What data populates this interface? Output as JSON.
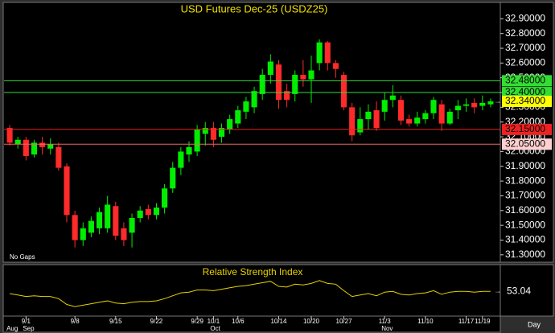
{
  "chart_data": {
    "type": "candlestick",
    "title": "USD Futures Dec-25 (USDZ25)",
    "note": "No Gaps",
    "period": "Day",
    "up_color": "#00ee00",
    "down_color": "#ff2a2a",
    "title_color": "#f0e000",
    "categories": [
      null,
      null,
      "9/1",
      null,
      null,
      null,
      null,
      null,
      "9/8",
      null,
      null,
      null,
      null,
      "9/15",
      null,
      null,
      null,
      null,
      "9/22",
      null,
      null,
      null,
      null,
      "9/29",
      null,
      "10/1",
      null,
      null,
      "10/6",
      null,
      null,
      null,
      null,
      "10/14",
      null,
      null,
      null,
      "10/20",
      null,
      null,
      null,
      "10/27",
      null,
      null,
      null,
      null,
      "11/3",
      null,
      null,
      null,
      null,
      "11/10",
      null,
      null,
      null,
      null,
      "11/17",
      null,
      "11/19",
      null
    ],
    "months": [
      "Aug",
      null,
      "Sep",
      null,
      null,
      null,
      null,
      null,
      null,
      null,
      null,
      null,
      null,
      null,
      null,
      null,
      null,
      null,
      null,
      null,
      null,
      null,
      null,
      null,
      null,
      "Oct",
      null,
      null,
      null,
      null,
      null,
      null,
      null,
      null,
      null,
      null,
      null,
      null,
      null,
      null,
      null,
      null,
      null,
      null,
      null,
      null,
      "Nov",
      null,
      null,
      null,
      null,
      null,
      null,
      null,
      null,
      null,
      null,
      null,
      null,
      null
    ],
    "open": [
      32.16,
      32.05,
      32.08,
      31.98,
      32.06,
      32.02,
      32.03,
      31.9,
      31.57,
      31.4,
      31.45,
      31.48,
      31.48,
      31.63,
      31.48,
      31.45,
      31.55,
      31.61,
      31.57,
      31.62,
      31.75,
      31.89,
      31.98,
      32.0,
      32.12,
      32.16,
      32.1,
      32.15,
      32.19,
      32.27,
      32.3,
      32.39,
      32.52,
      32.59,
      32.41,
      32.39,
      32.52,
      32.49,
      32.6,
      32.74,
      32.6,
      32.52,
      32.3,
      32.13,
      32.22,
      32.28,
      32.27,
      32.35,
      32.35,
      32.22,
      32.19,
      32.22,
      32.26,
      32.32,
      32.19,
      32.28,
      32.31,
      32.33,
      32.31,
      32.32
    ],
    "high": [
      32.18,
      32.1,
      32.1,
      32.08,
      32.1,
      32.09,
      32.06,
      31.92,
      31.6,
      31.52,
      31.56,
      31.62,
      31.7,
      31.66,
      31.52,
      31.58,
      31.63,
      31.64,
      31.65,
      31.78,
      31.93,
      32.03,
      32.07,
      32.18,
      32.2,
      32.2,
      32.19,
      32.25,
      32.31,
      32.37,
      32.44,
      32.56,
      32.66,
      32.62,
      32.46,
      32.55,
      32.62,
      32.65,
      32.76,
      32.75,
      32.62,
      32.54,
      32.33,
      32.3,
      32.32,
      32.34,
      32.4,
      32.45,
      32.38,
      32.25,
      32.27,
      32.28,
      32.37,
      32.35,
      32.29,
      32.35,
      32.36,
      32.36,
      32.38,
      32.36
    ],
    "low": [
      32.04,
      32.02,
      31.94,
      31.96,
      31.98,
      31.98,
      31.87,
      31.52,
      31.35,
      31.36,
      31.42,
      31.44,
      31.45,
      31.4,
      31.36,
      31.35,
      31.52,
      31.54,
      31.54,
      31.58,
      31.72,
      31.84,
      31.93,
      31.97,
      32.04,
      32.03,
      32.06,
      32.12,
      32.16,
      32.22,
      32.26,
      32.35,
      32.46,
      32.29,
      32.3,
      32.34,
      32.44,
      32.33,
      32.55,
      32.55,
      32.5,
      32.28,
      32.07,
      32.11,
      32.15,
      32.14,
      32.21,
      32.3,
      32.18,
      32.17,
      32.17,
      32.19,
      32.22,
      32.14,
      32.18,
      32.22,
      32.27,
      32.26,
      32.28,
      32.3
    ],
    "close": [
      32.06,
      32.08,
      31.97,
      32.06,
      32.03,
      32.05,
      31.89,
      31.57,
      31.4,
      31.48,
      31.53,
      31.59,
      31.64,
      31.43,
      31.4,
      31.55,
      31.6,
      31.57,
      31.62,
      31.75,
      31.89,
      32.0,
      32.03,
      32.15,
      32.16,
      32.08,
      32.16,
      32.22,
      32.28,
      32.34,
      32.41,
      32.52,
      32.61,
      32.35,
      32.35,
      32.52,
      32.49,
      32.55,
      32.74,
      32.6,
      32.56,
      32.3,
      32.11,
      32.22,
      32.27,
      32.16,
      32.35,
      32.38,
      32.21,
      32.19,
      32.23,
      32.26,
      32.35,
      32.19,
      32.27,
      32.31,
      32.32,
      32.3,
      32.33,
      32.34
    ],
    "ylim": [
      31.25,
      33.0
    ],
    "yticks": [
      {
        "value": 31.3,
        "label": "31.30000"
      },
      {
        "value": 31.4,
        "label": "31.40000"
      },
      {
        "value": 31.5,
        "label": "31.50000"
      },
      {
        "value": 31.6,
        "label": "31.60000"
      },
      {
        "value": 31.7,
        "label": "31.70000"
      },
      {
        "value": 31.8,
        "label": "31.80000"
      },
      {
        "value": 31.9,
        "label": "31.90000"
      },
      {
        "value": 32.0,
        "label": "32.00000"
      },
      {
        "value": 32.1,
        "label": "32.10000"
      },
      {
        "value": 32.2,
        "label": "32.20000"
      },
      {
        "value": 32.3,
        "label": "32.30000"
      },
      {
        "value": 32.4,
        "label": "32.40000"
      },
      {
        "value": 32.5,
        "label": "32.50000"
      },
      {
        "value": 32.6,
        "label": "32.60000"
      },
      {
        "value": 32.7,
        "label": "32.70000"
      },
      {
        "value": 32.8,
        "label": "32.80000"
      },
      {
        "value": 32.9,
        "label": "32.90000"
      }
    ],
    "levels": [
      {
        "value": 32.48,
        "label": "32.48000",
        "color": "#33dd33",
        "label_bg": "#33dd33"
      },
      {
        "value": 32.4,
        "label": "32.40000",
        "color": "#33dd33",
        "label_bg": "#33dd33"
      },
      {
        "value": 32.15,
        "label": "32.15000",
        "color": "#ee2222",
        "label_bg": "#ee2222"
      },
      {
        "value": 32.05,
        "label": "32.05000",
        "color": "#ee6666",
        "label_bg": "#ffd0d0"
      }
    ],
    "last": {
      "value": 32.34,
      "label": "32.34000",
      "label_bg": "#ffff00"
    },
    "rsi": {
      "title": "Relative Strength Index",
      "color": "#e6d200",
      "ylim": [
        20,
        80
      ],
      "values": [
        50,
        48,
        46,
        47,
        46,
        46,
        43,
        35,
        32,
        34,
        36,
        38,
        40,
        37,
        36,
        38,
        39,
        39,
        40,
        43,
        47,
        51,
        52,
        55,
        55,
        54,
        56,
        58,
        60,
        61,
        63,
        65,
        67,
        60,
        59,
        63,
        62,
        64,
        68,
        64,
        63,
        54,
        46,
        48,
        50,
        47,
        52,
        53,
        49,
        48,
        50,
        51,
        54,
        49,
        52,
        53,
        53,
        52,
        53,
        53.04
      ]
    }
  }
}
